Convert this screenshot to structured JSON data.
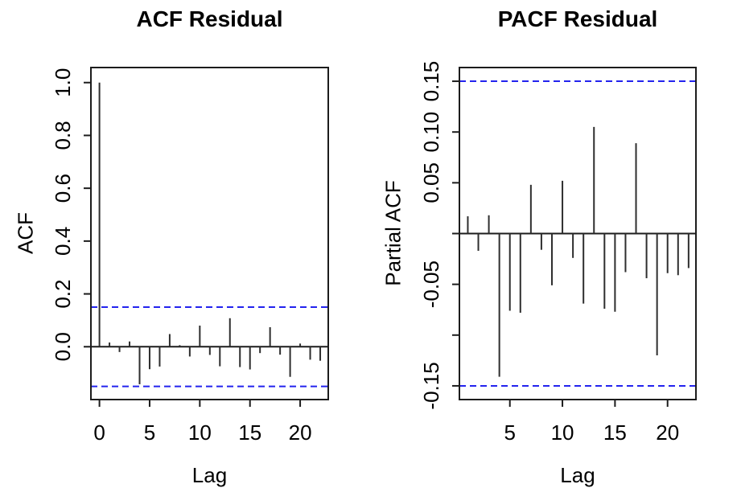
{
  "figure": {
    "background": "#ffffff",
    "colors": {
      "bar": "#2e2e2e",
      "axis": "#1c1c1c",
      "confidence_bound": "#2323ee",
      "text": "#000000"
    }
  },
  "chart_data": [
    {
      "type": "bar",
      "title": "ACF Residual",
      "xlabel": "Lag",
      "ylabel": "ACF",
      "x": [
        0,
        1,
        2,
        3,
        4,
        5,
        6,
        7,
        8,
        9,
        10,
        11,
        12,
        13,
        14,
        15,
        16,
        17,
        18,
        19,
        20,
        21,
        22
      ],
      "values": [
        1.0,
        0.016,
        -0.02,
        0.02,
        -0.142,
        -0.085,
        -0.075,
        0.048,
        0.006,
        -0.037,
        0.08,
        -0.031,
        -0.074,
        0.108,
        -0.077,
        -0.086,
        -0.024,
        0.074,
        -0.03,
        -0.114,
        0.012,
        -0.049,
        -0.053
      ],
      "confidence_bounds": [
        -0.15,
        0.15
      ],
      "xlim": [
        -0.85,
        22.8
      ],
      "ylim": [
        -0.2,
        1.057
      ],
      "grid": false,
      "xticks": [
        {
          "v": 0,
          "label": "0"
        },
        {
          "v": 5,
          "label": "5"
        },
        {
          "v": 10,
          "label": "10"
        },
        {
          "v": 15,
          "label": "15"
        },
        {
          "v": 20,
          "label": "20"
        }
      ],
      "yticks": [
        {
          "v": 0.0,
          "label": "0.0"
        },
        {
          "v": 0.2,
          "label": "0.2"
        },
        {
          "v": 0.4,
          "label": "0.4"
        },
        {
          "v": 0.6,
          "label": "0.6"
        },
        {
          "v": 0.8,
          "label": "0.8"
        },
        {
          "v": 1.0,
          "label": "1.0"
        }
      ]
    },
    {
      "type": "bar",
      "title": "PACF Residual",
      "xlabel": "Lag",
      "ylabel": "Partial ACF",
      "x": [
        1,
        2,
        3,
        4,
        5,
        6,
        7,
        8,
        9,
        10,
        11,
        12,
        13,
        14,
        15,
        16,
        17,
        18,
        19,
        20,
        21,
        22
      ],
      "values": [
        0.017,
        -0.017,
        0.018,
        -0.141,
        -0.076,
        -0.078,
        0.048,
        -0.016,
        -0.051,
        0.052,
        -0.024,
        -0.069,
        0.105,
        -0.074,
        -0.077,
        -0.038,
        0.089,
        -0.044,
        -0.12,
        -0.039,
        -0.041,
        -0.034
      ],
      "confidence_bounds": [
        -0.15,
        0.15
      ],
      "xlim": [
        0.2,
        22.7
      ],
      "ylim": [
        -0.1635,
        0.1635
      ],
      "grid": false,
      "xticks": [
        {
          "v": 5,
          "label": "5"
        },
        {
          "v": 10,
          "label": "10"
        },
        {
          "v": 15,
          "label": "15"
        },
        {
          "v": 20,
          "label": "20"
        }
      ],
      "yticks": [
        {
          "v": 0.15,
          "label": "0.15"
        },
        {
          "v": 0.1,
          "label": "0.10"
        },
        {
          "v": 0.05,
          "label": "0.05"
        },
        {
          "v": 0.0,
          "label": ""
        },
        {
          "v": -0.05,
          "label": "-0.05"
        },
        {
          "v": -0.1,
          "label": ""
        },
        {
          "v": -0.15,
          "label": "-0.15"
        }
      ]
    }
  ]
}
